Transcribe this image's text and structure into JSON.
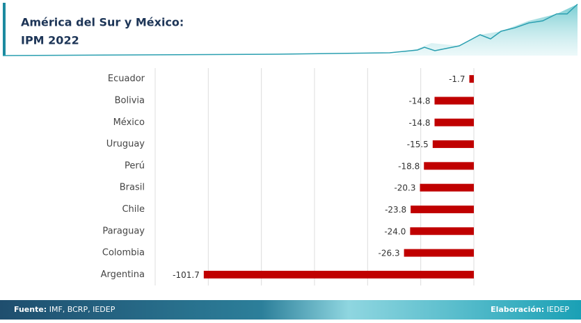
{
  "chart_data": {
    "type": "bar",
    "orientation": "horizontal",
    "title": "América del Sur y México:",
    "subtitle": "IPM 2022",
    "categories": [
      "Ecuador",
      "Bolivia",
      "México",
      "Uruguay",
      "Perú",
      "Brasil",
      "Chile",
      "Paraguay",
      "Colombia",
      "Argentina"
    ],
    "values": [
      -1.7,
      -14.8,
      -14.8,
      -15.5,
      -18.8,
      -20.3,
      -23.8,
      -24,
      -26.3,
      -101.7
    ],
    "value_labels": [
      "-1.7",
      "-14.8",
      "-14.8",
      "-15.5",
      "-18.8",
      "-20.3",
      "-23.8",
      "-24.0",
      "-26.3",
      "-101.7"
    ],
    "color": "#c00000",
    "xlim": [
      -120,
      0
    ],
    "xticks": [
      -120,
      -100,
      -80,
      -60,
      -40,
      -20,
      0
    ],
    "grid": true
  },
  "footer": {
    "source_label": "Fuente:",
    "source": "IMF, BCRP, IEDEP",
    "credit_label": "Elaboración:",
    "credit": "IEDEP"
  }
}
